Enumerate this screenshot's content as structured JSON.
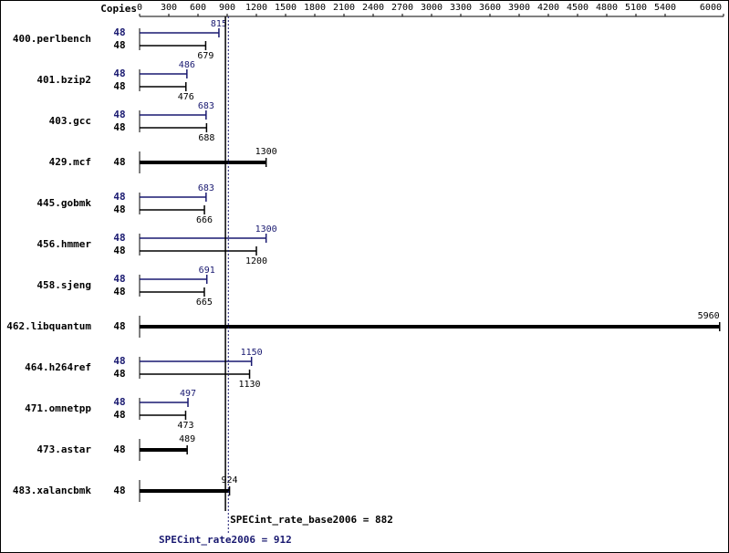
{
  "chart_data": {
    "type": "spec",
    "x_label": "Copies",
    "xlim": [
      0,
      6000
    ],
    "xticks": [
      0,
      300,
      600,
      900,
      1200,
      1500,
      1800,
      2100,
      2400,
      2700,
      3000,
      3300,
      3600,
      3900,
      4200,
      4500,
      4800,
      5100,
      5400,
      6000
    ],
    "categories": [
      "400.perlbench",
      "401.bzip2",
      "403.gcc",
      "429.mcf",
      "445.gobmk",
      "456.hmmer",
      "458.sjeng",
      "462.libquantum",
      "464.h264ref",
      "471.omnetpp",
      "473.astar",
      "483.xalancbmk"
    ],
    "series": [
      {
        "color": "#191970",
        "copies": [
          48,
          48,
          48,
          null,
          48,
          48,
          48,
          null,
          48,
          48,
          null,
          null
        ],
        "values": [
          815,
          486,
          683,
          null,
          683,
          1300,
          691,
          null,
          1150,
          497,
          null,
          null
        ]
      },
      {
        "color": "#000000",
        "copies": [
          48,
          48,
          48,
          48,
          48,
          48,
          48,
          48,
          48,
          48,
          48,
          48
        ],
        "values": [
          679,
          476,
          688,
          1300,
          666,
          1200,
          665,
          5960,
          1130,
          473,
          489,
          924
        ]
      }
    ],
    "base_value": 882,
    "base_label": "SPECint_rate_base2006 = 882",
    "peak_value": 912,
    "peak_label": "SPECint_rate2006 = 912"
  }
}
